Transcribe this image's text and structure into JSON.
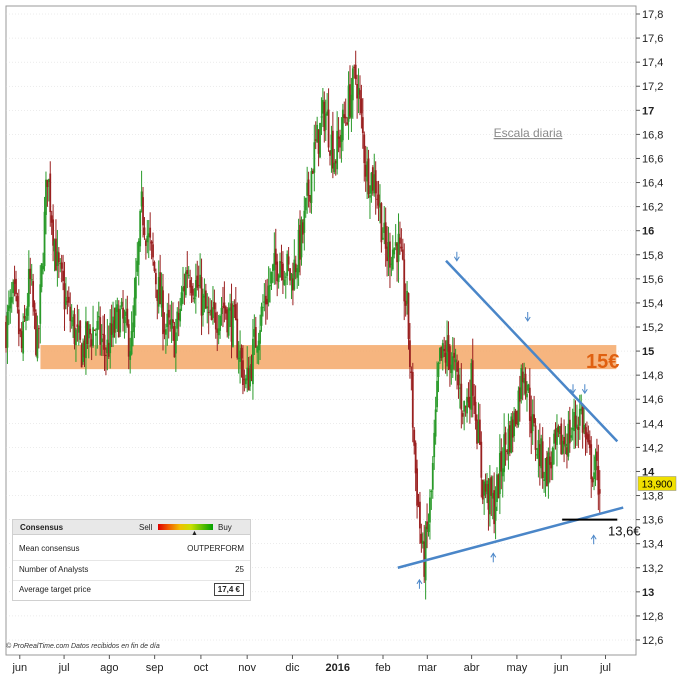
{
  "chart_data": {
    "type": "candlestick",
    "title": "",
    "xlabel": "",
    "ylabel": "",
    "ylim": [
      12.5,
      17.85
    ],
    "y_ticks": [
      "17,8",
      "17,6",
      "17,4",
      "17,2",
      "17",
      "16,8",
      "16,6",
      "16,4",
      "16,2",
      "16",
      "15,8",
      "15,6",
      "15,4",
      "15,2",
      "15",
      "14,8",
      "14,6",
      "14,4",
      "14,2",
      "14",
      "13,8",
      "13,6",
      "13,4",
      "13,2",
      "13",
      "12,8",
      "12,6"
    ],
    "y_tick_values": [
      17.8,
      17.6,
      17.4,
      17.2,
      17.0,
      16.8,
      16.6,
      16.4,
      16.2,
      16.0,
      15.8,
      15.6,
      15.4,
      15.2,
      15.0,
      14.8,
      14.6,
      14.4,
      14.2,
      14.0,
      13.8,
      13.6,
      13.4,
      13.2,
      13.0,
      12.8,
      12.6
    ],
    "bold_ticks": [
      "17",
      "16",
      "15",
      "14",
      "13"
    ],
    "x_ticks": [
      "jun",
      "jul",
      "ago",
      "sep",
      "oct",
      "nov",
      "dic",
      "2016",
      "feb",
      "mar",
      "abr",
      "may",
      "jun",
      "jul"
    ],
    "x_tick_days": [
      14,
      59,
      105,
      151,
      198,
      245,
      291,
      337,
      383,
      428,
      473,
      519,
      564,
      609
    ],
    "total_days": 640,
    "series": [
      {
        "close_path": [
          [
            0,
            15.2
          ],
          [
            8,
            15.45
          ],
          [
            16,
            15.0
          ],
          [
            24,
            15.6
          ],
          [
            32,
            15.0
          ],
          [
            42,
            16.5
          ],
          [
            52,
            15.7
          ],
          [
            64,
            15.3
          ],
          [
            76,
            15.0
          ],
          [
            90,
            15.2
          ],
          [
            102,
            15.0
          ],
          [
            115,
            15.3
          ],
          [
            128,
            15.05
          ],
          [
            138,
            16.2
          ],
          [
            150,
            15.7
          ],
          [
            162,
            15.2
          ],
          [
            172,
            15.1
          ],
          [
            184,
            15.7
          ],
          [
            196,
            15.5
          ],
          [
            208,
            15.2
          ],
          [
            220,
            15.4
          ],
          [
            232,
            15.2
          ],
          [
            244,
            14.7
          ],
          [
            256,
            15.2
          ],
          [
            266,
            15.5
          ],
          [
            278,
            15.8
          ],
          [
            290,
            15.6
          ],
          [
            302,
            16.0
          ],
          [
            312,
            16.6
          ],
          [
            324,
            17.0
          ],
          [
            334,
            16.6
          ],
          [
            346,
            17.0
          ],
          [
            356,
            17.3
          ],
          [
            366,
            16.5
          ],
          [
            376,
            16.4
          ],
          [
            386,
            15.8
          ],
          [
            398,
            15.9
          ],
          [
            408,
            15.3
          ],
          [
            416,
            14.0
          ],
          [
            424,
            13.2
          ],
          [
            432,
            13.8
          ],
          [
            440,
            14.9
          ],
          [
            450,
            15.0
          ],
          [
            460,
            14.7
          ],
          [
            466,
            14.5
          ],
          [
            474,
            14.8
          ],
          [
            484,
            13.9
          ],
          [
            496,
            13.7
          ],
          [
            506,
            14.2
          ],
          [
            516,
            14.4
          ],
          [
            526,
            14.9
          ],
          [
            536,
            14.3
          ],
          [
            548,
            14.0
          ],
          [
            560,
            14.2
          ],
          [
            572,
            14.3
          ],
          [
            584,
            14.5
          ],
          [
            592,
            14.1
          ],
          [
            598,
            14.0
          ],
          [
            604,
            13.9
          ]
        ],
        "last_price": "13,900",
        "last_price_value": 13.9
      }
    ],
    "annotations": {
      "scale_label": "Escala diaria",
      "resistance_label": "15€",
      "resistance_band": [
        14.85,
        15.05
      ],
      "support_label": "13,6€",
      "support_level": 13.6,
      "down_trendline": [
        [
          447,
          15.75
        ],
        [
          621,
          14.25
        ]
      ],
      "up_trendline": [
        [
          398,
          13.2
        ],
        [
          627,
          13.7
        ]
      ],
      "down_arrows": [
        [
          458,
          15.75
        ],
        [
          530,
          15.25
        ],
        [
          576,
          14.65
        ],
        [
          588,
          14.65
        ]
      ],
      "up_arrows": [
        [
          420,
          13.1
        ],
        [
          495,
          13.32
        ],
        [
          597,
          13.47
        ]
      ]
    },
    "colors": {
      "up_candle": "#2a9a2a",
      "down_candle": "#9a2020",
      "band": "#f4a868",
      "band_text": "#e06010",
      "trendline": "#4a86c8",
      "arrow": "#4a86c8",
      "price_tag": "#f0e000",
      "support_line": "#000000",
      "grid": "#d8d8d8"
    }
  },
  "consensus": {
    "title": "Consensus",
    "sell_label": "Sell",
    "buy_label": "Buy",
    "pointer": "▲",
    "pointer_level": 0.62,
    "rows": [
      {
        "label": "Mean consensus",
        "value": "OUTPERFORM"
      },
      {
        "label": "Number of Analysts",
        "value": "25"
      },
      {
        "label": "Average target price",
        "value": "17,4 €"
      }
    ]
  },
  "credit": {
    "text": "© ProRealTime.com  Datos recibidos en fin de día"
  }
}
